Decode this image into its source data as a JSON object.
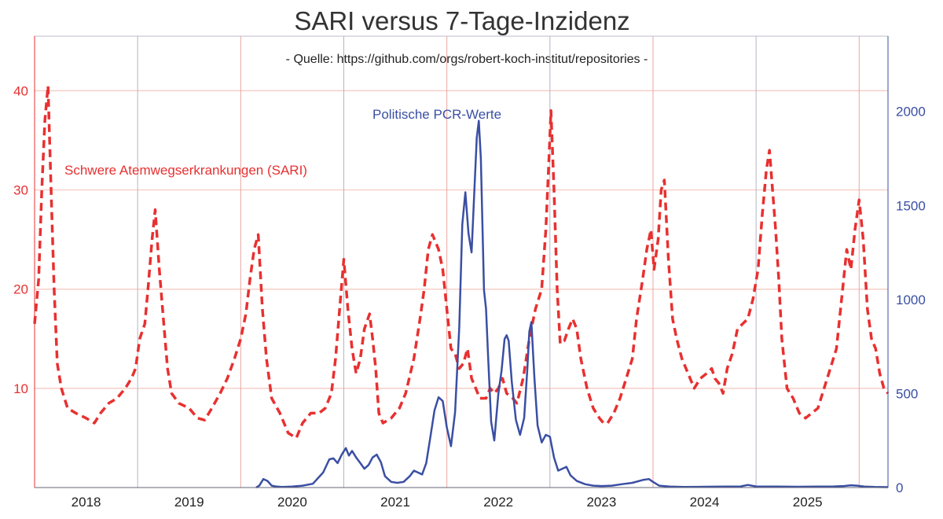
{
  "chart_data": {
    "type": "line",
    "title": "SARI versus 7-Tage-Inzidenz",
    "subtitle": "- Quelle: https://github.com/orgs/robert-koch-institut/repositories -",
    "xlabel": "",
    "ylabel_left": "",
    "ylabel_right": "",
    "x_range": [
      2017.5,
      2025.78
    ],
    "x_tick_labels": [
      "2018",
      "2019",
      "2020",
      "2021",
      "2022",
      "2023",
      "2024",
      "2025"
    ],
    "x_tick_positions": [
      2018.0,
      2019.0,
      2020.0,
      2021.0,
      2022.0,
      2023.0,
      2024.0,
      2025.0
    ],
    "x_year_boundaries": [
      2018.5,
      2019.5,
      2020.5,
      2021.5,
      2022.5,
      2023.5,
      2024.5,
      2025.5
    ],
    "ylim_left": [
      0,
      45.5
    ],
    "yticks_left": [
      10,
      20,
      30,
      40
    ],
    "ylim_right": [
      0,
      2400
    ],
    "yticks_right": [
      0,
      500,
      1000,
      1500,
      2000
    ],
    "grid": true,
    "colors": {
      "sari": "#e83030",
      "incidence": "#3a4fa3",
      "grid_h": "#f7cfc8",
      "grid_v_red": "#eaa6a0",
      "grid_v_gray": "#b4b4c8"
    },
    "annotations": [
      {
        "text": "Schwere Atemwegserkrankungen (SARI)",
        "color": "#e83030",
        "series": "SARI"
      },
      {
        "text": "Politische PCR-Werte",
        "color": "#3a4fa3",
        "series": "Inzidenz"
      }
    ],
    "series": [
      {
        "name": "Schwere Atemwegserkrankungen (SARI)",
        "axis": "left",
        "style": "dashed",
        "color": "#e83030",
        "points": [
          [
            2017.5,
            16.5
          ],
          [
            2017.54,
            21
          ],
          [
            2017.57,
            30
          ],
          [
            2017.6,
            37
          ],
          [
            2017.63,
            40.5
          ],
          [
            2017.66,
            30
          ],
          [
            2017.69,
            20
          ],
          [
            2017.72,
            12.5
          ],
          [
            2017.76,
            10
          ],
          [
            2017.82,
            8
          ],
          [
            2017.9,
            7.5
          ],
          [
            2018.0,
            7
          ],
          [
            2018.08,
            6.5
          ],
          [
            2018.14,
            7.5
          ],
          [
            2018.22,
            8.5
          ],
          [
            2018.3,
            9
          ],
          [
            2018.38,
            10
          ],
          [
            2018.44,
            11
          ],
          [
            2018.48,
            12
          ],
          [
            2018.52,
            15
          ],
          [
            2018.57,
            16.5
          ],
          [
            2018.6,
            20
          ],
          [
            2018.64,
            25
          ],
          [
            2018.67,
            28
          ],
          [
            2018.71,
            22
          ],
          [
            2018.75,
            17
          ],
          [
            2018.79,
            12
          ],
          [
            2018.83,
            9.5
          ],
          [
            2018.9,
            8.5
          ],
          [
            2019.0,
            8
          ],
          [
            2019.08,
            7
          ],
          [
            2019.15,
            6.8
          ],
          [
            2019.22,
            8
          ],
          [
            2019.3,
            9.5
          ],
          [
            2019.37,
            11
          ],
          [
            2019.44,
            13
          ],
          [
            2019.5,
            15
          ],
          [
            2019.55,
            17.5
          ],
          [
            2019.59,
            21
          ],
          [
            2019.63,
            24
          ],
          [
            2019.67,
            25.5
          ],
          [
            2019.71,
            18
          ],
          [
            2019.75,
            13
          ],
          [
            2019.8,
            9
          ],
          [
            2019.88,
            7.5
          ],
          [
            2019.96,
            5.5
          ],
          [
            2020.04,
            5
          ],
          [
            2020.1,
            6.5
          ],
          [
            2020.18,
            7.5
          ],
          [
            2020.26,
            7.5
          ],
          [
            2020.32,
            8
          ],
          [
            2020.38,
            9.5
          ],
          [
            2020.42,
            13
          ],
          [
            2020.46,
            18
          ],
          [
            2020.5,
            23
          ],
          [
            2020.54,
            18
          ],
          [
            2020.58,
            14
          ],
          [
            2020.62,
            11.5
          ],
          [
            2020.66,
            13
          ],
          [
            2020.7,
            16
          ],
          [
            2020.75,
            17.5
          ],
          [
            2020.78,
            15
          ],
          [
            2020.81,
            12
          ],
          [
            2020.84,
            7.5
          ],
          [
            2020.88,
            6.5
          ],
          [
            2020.96,
            7
          ],
          [
            2021.04,
            8
          ],
          [
            2021.1,
            9.5
          ],
          [
            2021.18,
            13
          ],
          [
            2021.24,
            17
          ],
          [
            2021.28,
            20
          ],
          [
            2021.32,
            24
          ],
          [
            2021.36,
            25.5
          ],
          [
            2021.42,
            24
          ],
          [
            2021.46,
            22
          ],
          [
            2021.5,
            18
          ],
          [
            2021.54,
            14
          ],
          [
            2021.58,
            13.5
          ],
          [
            2021.62,
            12
          ],
          [
            2021.66,
            12.5
          ],
          [
            2021.7,
            14
          ],
          [
            2021.74,
            11
          ],
          [
            2021.78,
            10
          ],
          [
            2021.82,
            9
          ],
          [
            2021.88,
            9
          ],
          [
            2021.92,
            10
          ],
          [
            2021.96,
            9.5
          ],
          [
            2022.0,
            10
          ],
          [
            2022.04,
            11
          ],
          [
            2022.08,
            9.5
          ],
          [
            2022.14,
            9
          ],
          [
            2022.18,
            8.5
          ],
          [
            2022.24,
            11
          ],
          [
            2022.3,
            15
          ],
          [
            2022.36,
            18
          ],
          [
            2022.42,
            20
          ],
          [
            2022.46,
            26
          ],
          [
            2022.49,
            33
          ],
          [
            2022.51,
            38
          ],
          [
            2022.54,
            30
          ],
          [
            2022.57,
            20
          ],
          [
            2022.6,
            14.5
          ],
          [
            2022.64,
            14.8
          ],
          [
            2022.68,
            16
          ],
          [
            2022.72,
            17
          ],
          [
            2022.76,
            16
          ],
          [
            2022.8,
            13
          ],
          [
            2022.86,
            10
          ],
          [
            2022.92,
            8
          ],
          [
            2022.98,
            7
          ],
          [
            2023.02,
            6.5
          ],
          [
            2023.06,
            6.5
          ],
          [
            2023.12,
            7.5
          ],
          [
            2023.18,
            9
          ],
          [
            2023.24,
            11
          ],
          [
            2023.3,
            13
          ],
          [
            2023.34,
            17
          ],
          [
            2023.4,
            21
          ],
          [
            2023.44,
            24
          ],
          [
            2023.48,
            26
          ],
          [
            2023.51,
            22
          ],
          [
            2023.55,
            25
          ],
          [
            2023.58,
            30
          ],
          [
            2023.61,
            31
          ],
          [
            2023.65,
            23
          ],
          [
            2023.69,
            17
          ],
          [
            2023.73,
            15
          ],
          [
            2023.78,
            13
          ],
          [
            2023.84,
            11.5
          ],
          [
            2023.9,
            10
          ],
          [
            2023.96,
            11
          ],
          [
            2024.02,
            11.5
          ],
          [
            2024.07,
            12
          ],
          [
            2024.1,
            11
          ],
          [
            2024.14,
            10.5
          ],
          [
            2024.18,
            9.5
          ],
          [
            2024.22,
            12
          ],
          [
            2024.27,
            13.5
          ],
          [
            2024.32,
            16
          ],
          [
            2024.37,
            16.5
          ],
          [
            2024.42,
            17
          ],
          [
            2024.47,
            19
          ],
          [
            2024.52,
            22
          ],
          [
            2024.56,
            27.5
          ],
          [
            2024.6,
            32
          ],
          [
            2024.63,
            34
          ],
          [
            2024.66,
            30
          ],
          [
            2024.69,
            26
          ],
          [
            2024.72,
            21
          ],
          [
            2024.75,
            15
          ],
          [
            2024.8,
            10
          ],
          [
            2024.86,
            9
          ],
          [
            2024.92,
            7.5
          ],
          [
            2024.98,
            7
          ],
          [
            2025.04,
            7.5
          ],
          [
            2025.1,
            8
          ],
          [
            2025.16,
            10
          ],
          [
            2025.22,
            12
          ],
          [
            2025.28,
            14
          ],
          [
            2025.34,
            20
          ],
          [
            2025.38,
            24
          ],
          [
            2025.42,
            22
          ],
          [
            2025.46,
            26
          ],
          [
            2025.5,
            29
          ],
          [
            2025.54,
            25
          ],
          [
            2025.58,
            18
          ],
          [
            2025.62,
            15
          ],
          [
            2025.66,
            14
          ],
          [
            2025.7,
            11.5
          ],
          [
            2025.74,
            10
          ],
          [
            2025.78,
            9.5
          ]
        ]
      },
      {
        "name": "Politische PCR-Werte",
        "axis": "right",
        "style": "solid",
        "color": "#3a4fa3",
        "points": [
          [
            2019.65,
            0
          ],
          [
            2019.68,
            10
          ],
          [
            2019.72,
            45
          ],
          [
            2019.76,
            35
          ],
          [
            2019.8,
            10
          ],
          [
            2019.85,
            5
          ],
          [
            2019.9,
            3
          ],
          [
            2020.0,
            5
          ],
          [
            2020.1,
            10
          ],
          [
            2020.2,
            20
          ],
          [
            2020.3,
            80
          ],
          [
            2020.36,
            150
          ],
          [
            2020.4,
            155
          ],
          [
            2020.44,
            130
          ],
          [
            2020.48,
            175
          ],
          [
            2020.52,
            210
          ],
          [
            2020.55,
            170
          ],
          [
            2020.58,
            195
          ],
          [
            2020.62,
            160
          ],
          [
            2020.66,
            130
          ],
          [
            2020.7,
            100
          ],
          [
            2020.74,
            120
          ],
          [
            2020.78,
            160
          ],
          [
            2020.82,
            175
          ],
          [
            2020.86,
            135
          ],
          [
            2020.9,
            60
          ],
          [
            2020.96,
            30
          ],
          [
            2021.02,
            25
          ],
          [
            2021.08,
            30
          ],
          [
            2021.14,
            60
          ],
          [
            2021.18,
            90
          ],
          [
            2021.22,
            80
          ],
          [
            2021.26,
            70
          ],
          [
            2021.3,
            130
          ],
          [
            2021.34,
            270
          ],
          [
            2021.38,
            410
          ],
          [
            2021.42,
            480
          ],
          [
            2021.46,
            460
          ],
          [
            2021.5,
            320
          ],
          [
            2021.54,
            220
          ],
          [
            2021.58,
            400
          ],
          [
            2021.62,
            850
          ],
          [
            2021.65,
            1400
          ],
          [
            2021.68,
            1570
          ],
          [
            2021.71,
            1350
          ],
          [
            2021.74,
            1250
          ],
          [
            2021.77,
            1620
          ],
          [
            2021.79,
            1860
          ],
          [
            2021.81,
            1950
          ],
          [
            2021.83,
            1750
          ],
          [
            2021.86,
            1050
          ],
          [
            2021.88,
            950
          ],
          [
            2021.9,
            700
          ],
          [
            2021.93,
            350
          ],
          [
            2021.96,
            250
          ],
          [
            2022.0,
            500
          ],
          [
            2022.03,
            620
          ],
          [
            2022.06,
            790
          ],
          [
            2022.08,
            810
          ],
          [
            2022.1,
            780
          ],
          [
            2022.13,
            560
          ],
          [
            2022.17,
            360
          ],
          [
            2022.21,
            280
          ],
          [
            2022.25,
            370
          ],
          [
            2022.28,
            620
          ],
          [
            2022.3,
            830
          ],
          [
            2022.32,
            880
          ],
          [
            2022.35,
            580
          ],
          [
            2022.38,
            330
          ],
          [
            2022.42,
            240
          ],
          [
            2022.46,
            280
          ],
          [
            2022.5,
            270
          ],
          [
            2022.54,
            160
          ],
          [
            2022.58,
            90
          ],
          [
            2022.62,
            100
          ],
          [
            2022.66,
            110
          ],
          [
            2022.7,
            65
          ],
          [
            2022.76,
            35
          ],
          [
            2022.84,
            18
          ],
          [
            2022.92,
            10
          ],
          [
            2023.0,
            8
          ],
          [
            2023.1,
            10
          ],
          [
            2023.2,
            18
          ],
          [
            2023.3,
            25
          ],
          [
            2023.4,
            40
          ],
          [
            2023.46,
            45
          ],
          [
            2023.5,
            30
          ],
          [
            2023.56,
            10
          ],
          [
            2023.66,
            5
          ],
          [
            2023.8,
            3
          ],
          [
            2024.0,
            4
          ],
          [
            2024.2,
            5
          ],
          [
            2024.35,
            6
          ],
          [
            2024.42,
            14
          ],
          [
            2024.5,
            6
          ],
          [
            2024.7,
            5
          ],
          [
            2024.9,
            4
          ],
          [
            2025.1,
            5
          ],
          [
            2025.25,
            6
          ],
          [
            2025.35,
            8
          ],
          [
            2025.42,
            12
          ],
          [
            2025.48,
            10
          ],
          [
            2025.55,
            5
          ],
          [
            2025.65,
            3
          ],
          [
            2025.78,
            2
          ]
        ]
      }
    ]
  }
}
